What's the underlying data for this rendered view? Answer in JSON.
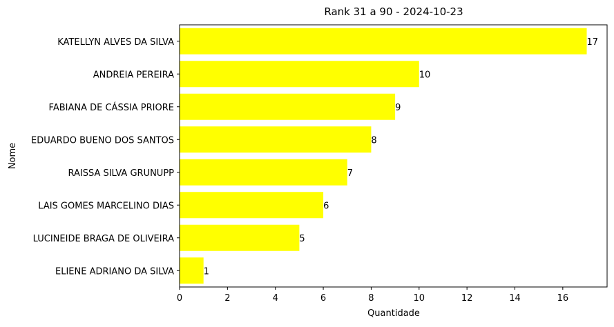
{
  "chart_data": {
    "type": "bar",
    "orientation": "horizontal",
    "title": "Rank 31 a 90 - 2024-10-23",
    "xlabel": "Quantidade",
    "ylabel": "Nome",
    "categories": [
      "KATELLYN ALVES DA SILVA",
      "ANDREIA PEREIRA",
      "FABIANA DE CÁSSIA PRIORE",
      "EDUARDO BUENO DOS SANTOS",
      "RAISSA SILVA GRUNUPP",
      "LAIS GOMES MARCELINO DIAS",
      "LUCINEIDE BRAGA DE OLIVEIRA",
      "ELIENE ADRIANO DA SILVA"
    ],
    "values": [
      17,
      10,
      9,
      8,
      7,
      6,
      5,
      1
    ],
    "data_labels": [
      "17",
      "10",
      "9",
      "8",
      "7",
      "6",
      "5",
      "1"
    ],
    "xlim": [
      0,
      17.85
    ],
    "xticks": [
      0,
      2,
      4,
      6,
      8,
      10,
      12,
      14,
      16
    ],
    "xtick_labels": [
      "0",
      "2",
      "4",
      "6",
      "8",
      "10",
      "12",
      "14",
      "16"
    ],
    "grid": false,
    "legend": "none",
    "bar_color": "#ffff00"
  }
}
